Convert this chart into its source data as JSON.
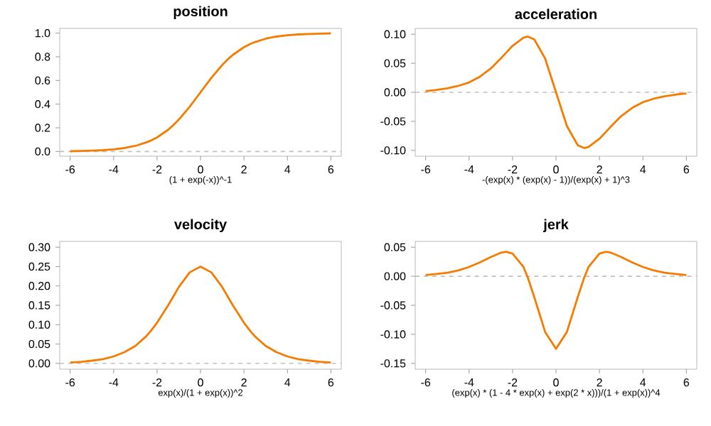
{
  "chart_data": [
    {
      "type": "line",
      "title": "position",
      "xlabel": "(1 + exp(-x))^-1",
      "color": "#f57c00",
      "x": [
        -6,
        -5.5,
        -5,
        -4.5,
        -4,
        -3.5,
        -3,
        -2.5,
        -2.3,
        -2,
        -1.5,
        -1.3,
        -1,
        -0.5,
        0,
        0.5,
        1,
        1.3,
        1.5,
        2,
        2.3,
        2.5,
        3,
        3.5,
        4,
        4.5,
        5,
        5.5,
        6
      ],
      "values": [
        0.002,
        0.004,
        0.007,
        0.011,
        0.018,
        0.029,
        0.047,
        0.076,
        0.091,
        0.119,
        0.182,
        0.214,
        0.269,
        0.378,
        0.5,
        0.622,
        0.731,
        0.786,
        0.818,
        0.881,
        0.909,
        0.924,
        0.953,
        0.971,
        0.982,
        0.989,
        0.993,
        0.996,
        0.998
      ],
      "xlim": [
        -6.48,
        6.48
      ],
      "xticks": [
        -6,
        -4,
        -2,
        0,
        2,
        4,
        6
      ],
      "ylim": [
        -0.04,
        1.04
      ],
      "yticks": [
        {
          "value": 0,
          "label": "0.0"
        },
        {
          "value": 0.2,
          "label": "0.2"
        },
        {
          "value": 0.4,
          "label": "0.4"
        },
        {
          "value": 0.6,
          "label": "0.6"
        },
        {
          "value": 0.8,
          "label": "0.8"
        },
        {
          "value": 1,
          "label": "1.0"
        }
      ],
      "ref_lines": [
        {
          "axis": "y",
          "value": 0,
          "color": "#c0c0c0",
          "line_style": "dashed"
        }
      ]
    },
    {
      "type": "line",
      "title": "acceleration",
      "xlabel": "-(exp(x) * (exp(x) - 1))/(exp(x) + 1)^3",
      "color": "#f57c00",
      "x": [
        -6,
        -5.5,
        -5,
        -4.5,
        -4,
        -3.5,
        -3,
        -2.5,
        -2.3,
        -2,
        -1.5,
        -1.3,
        -1,
        -0.5,
        0,
        0.5,
        1,
        1.3,
        1.5,
        2,
        2.3,
        2.5,
        3,
        3.5,
        4,
        4.5,
        5,
        5.5,
        6
      ],
      "values": [
        0.002,
        0.004,
        0.007,
        0.011,
        0.017,
        0.027,
        0.041,
        0.06,
        0.068,
        0.08,
        0.094,
        0.096,
        0.091,
        0.058,
        0,
        -0.058,
        -0.091,
        -0.096,
        -0.094,
        -0.08,
        -0.068,
        -0.06,
        -0.041,
        -0.027,
        -0.017,
        -0.011,
        -0.007,
        -0.004,
        -0.002
      ],
      "xlim": [
        -6.48,
        6.48
      ],
      "xticks": [
        -6,
        -4,
        -2,
        0,
        2,
        4,
        6
      ],
      "ylim": [
        -0.11,
        0.11
      ],
      "yticks": [
        {
          "value": -0.1,
          "label": "-0.10"
        },
        {
          "value": -0.05,
          "label": "-0.05"
        },
        {
          "value": 0,
          "label": "0.00"
        },
        {
          "value": 0.05,
          "label": "0.05"
        },
        {
          "value": 0.1,
          "label": "0.10"
        }
      ],
      "ref_lines": [
        {
          "axis": "y",
          "value": 0,
          "color": "#c0c0c0",
          "line_style": "dashed"
        }
      ]
    },
    {
      "type": "line",
      "title": "velocity",
      "xlabel": "exp(x)/(1 + exp(x))^2",
      "color": "#f57c00",
      "x": [
        -6,
        -5.5,
        -5,
        -4.5,
        -4,
        -3.5,
        -3,
        -2.5,
        -2.3,
        -2,
        -1.5,
        -1.3,
        -1,
        -0.5,
        0,
        0.5,
        1,
        1.3,
        1.5,
        2,
        2.3,
        2.5,
        3,
        3.5,
        4,
        4.5,
        5,
        5.5,
        6
      ],
      "values": [
        0.002,
        0.004,
        0.007,
        0.011,
        0.018,
        0.029,
        0.045,
        0.07,
        0.083,
        0.105,
        0.149,
        0.168,
        0.197,
        0.235,
        0.25,
        0.235,
        0.197,
        0.168,
        0.149,
        0.105,
        0.083,
        0.07,
        0.045,
        0.029,
        0.018,
        0.011,
        0.007,
        0.004,
        0.002
      ],
      "xlim": [
        -6.48,
        6.48
      ],
      "xticks": [
        -6,
        -4,
        -2,
        0,
        2,
        4,
        6
      ],
      "ylim": [
        -0.015,
        0.315
      ],
      "yticks": [
        {
          "value": 0,
          "label": "0.00"
        },
        {
          "value": 0.05,
          "label": "0.05"
        },
        {
          "value": 0.1,
          "label": "0.10"
        },
        {
          "value": 0.15,
          "label": "0.15"
        },
        {
          "value": 0.2,
          "label": "0.20"
        },
        {
          "value": 0.25,
          "label": "0.25"
        },
        {
          "value": 0.3,
          "label": "0.30"
        }
      ],
      "ref_lines": [
        {
          "axis": "y",
          "value": 0,
          "color": "#c0c0c0",
          "line_style": "dashed"
        }
      ]
    },
    {
      "type": "line",
      "title": "jerk",
      "xlabel": "(exp(x) * (1 - 4 * exp(x) + exp(2 * x)))/(1 + exp(x))^4",
      "color": "#f57c00",
      "x": [
        -6,
        -5.5,
        -5,
        -4.5,
        -4,
        -3.5,
        -3,
        -2.5,
        -2.3,
        -2,
        -1.5,
        -1.3,
        -1,
        -0.5,
        0,
        0.5,
        1,
        1.3,
        1.5,
        2,
        2.3,
        2.5,
        3,
        3.5,
        4,
        4.5,
        5,
        5.5,
        6
      ],
      "values": [
        0.002,
        0.004,
        0.006,
        0.01,
        0.016,
        0.024,
        0.033,
        0.041,
        0.042,
        0.039,
        0.016,
        -0.002,
        -0.036,
        -0.096,
        -0.125,
        -0.096,
        -0.036,
        -0.002,
        0.016,
        0.039,
        0.042,
        0.041,
        0.033,
        0.024,
        0.016,
        0.01,
        0.006,
        0.004,
        0.002
      ],
      "xlim": [
        -6.48,
        6.48
      ],
      "xticks": [
        -6,
        -4,
        -2,
        0,
        2,
        4,
        6
      ],
      "ylim": [
        -0.16,
        0.06
      ],
      "yticks": [
        {
          "value": -0.15,
          "label": "-0.15"
        },
        {
          "value": -0.1,
          "label": "-0.10"
        },
        {
          "value": -0.05,
          "label": "-0.05"
        },
        {
          "value": 0,
          "label": "0.00"
        },
        {
          "value": 0.05,
          "label": "0.05"
        }
      ],
      "ref_lines": [
        {
          "axis": "y",
          "value": 0,
          "color": "#c0c0c0",
          "line_style": "dashed"
        }
      ]
    }
  ]
}
